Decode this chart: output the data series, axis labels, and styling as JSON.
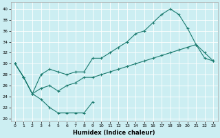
{
  "bg_color": "#cceef2",
  "grid_color": "#ffffff",
  "line_color": "#1a7a6e",
  "xlabel": "Humidex (Indice chaleur)",
  "xlim": [
    -0.5,
    23.5
  ],
  "ylim": [
    19.5,
    41.2
  ],
  "xticks": [
    0,
    1,
    2,
    3,
    4,
    5,
    6,
    7,
    8,
    9,
    10,
    11,
    12,
    13,
    14,
    15,
    16,
    17,
    18,
    19,
    20,
    21,
    22,
    23
  ],
  "yticks": [
    20,
    22,
    24,
    26,
    28,
    30,
    32,
    34,
    36,
    38,
    40
  ],
  "curve_top_x": [
    0,
    1,
    2,
    3,
    4,
    5,
    6,
    7,
    8,
    9,
    10,
    11,
    12,
    13,
    14,
    15,
    16,
    17,
    18,
    19,
    20,
    21,
    22,
    23
  ],
  "curve_top_y": [
    30,
    27.5,
    24.5,
    28,
    29,
    28.5,
    28,
    28.5,
    28.5,
    31,
    31,
    32,
    33,
    34,
    35.5,
    36,
    37.5,
    39,
    40,
    39,
    36.5,
    33.5,
    32,
    30.5
  ],
  "curve_mid_x": [
    0,
    1,
    2,
    3,
    4,
    5,
    6,
    7,
    8,
    9,
    10,
    11,
    12,
    13,
    14,
    15,
    16,
    17,
    18,
    19,
    20,
    21,
    22,
    23
  ],
  "curve_mid_y": [
    30,
    27.5,
    24.5,
    25.5,
    26,
    25,
    26,
    26.5,
    27.5,
    27.5,
    28,
    28.5,
    29,
    29.5,
    30,
    30.5,
    31,
    31.5,
    32,
    32.5,
    33,
    33.5,
    31,
    30.5
  ],
  "curve_bot_x": [
    0,
    1,
    2,
    3,
    4,
    5,
    6,
    7,
    8,
    9
  ],
  "curve_bot_y": [
    30,
    27.5,
    24.5,
    23.5,
    22,
    21,
    21,
    21,
    21,
    23
  ],
  "figsize": [
    3.2,
    2.0
  ],
  "dpi": 100,
  "tick_labelsize": 4.5,
  "xlabel_fontsize": 6.0,
  "lw": 0.8,
  "marker_size": 2.5,
  "mew": 0.8
}
